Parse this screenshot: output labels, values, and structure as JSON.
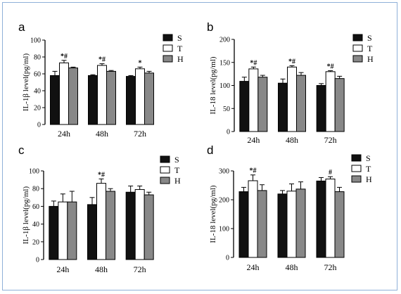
{
  "chart_data": [
    {
      "type": "bar",
      "panel_label": "a",
      "ylabel": "IL-1β level(pg/ml)",
      "ylim": [
        0,
        100
      ],
      "yticks": [
        0,
        20,
        40,
        60,
        80,
        100
      ],
      "categories": [
        "24h",
        "48h",
        "72h"
      ],
      "series": [
        {
          "name": "S",
          "color": "#111111",
          "values": [
            58,
            58,
            57
          ],
          "errors": [
            5,
            1,
            1
          ]
        },
        {
          "name": "T",
          "color": "#ffffff",
          "values": [
            73,
            70,
            66
          ],
          "errors": [
            3,
            2,
            2
          ]
        },
        {
          "name": "H",
          "color": "#888888",
          "values": [
            67,
            63,
            61
          ],
          "errors": [
            1,
            1,
            2
          ]
        }
      ],
      "annotations": [
        {
          "category": 0,
          "series": 1,
          "text": "*#"
        },
        {
          "category": 1,
          "series": 1,
          "text": "*#"
        },
        {
          "category": 2,
          "series": 1,
          "text": "*"
        }
      ],
      "legend_position": "right"
    },
    {
      "type": "bar",
      "panel_label": "b",
      "ylabel": "IL-18 level(pg/ml)",
      "ylim": [
        0,
        200
      ],
      "yticks": [
        0,
        50,
        100,
        150,
        200
      ],
      "categories": [
        "24h",
        "48h",
        "72h"
      ],
      "series": [
        {
          "name": "S",
          "color": "#111111",
          "values": [
            109,
            105,
            100
          ],
          "errors": [
            9,
            9,
            4
          ]
        },
        {
          "name": "T",
          "color": "#ffffff",
          "values": [
            136,
            140,
            130
          ],
          "errors": [
            4,
            3,
            2
          ]
        },
        {
          "name": "H",
          "color": "#888888",
          "values": [
            118,
            122,
            115
          ],
          "errors": [
            4,
            6,
            5
          ]
        }
      ],
      "annotations": [
        {
          "category": 0,
          "series": 1,
          "text": "*#"
        },
        {
          "category": 1,
          "series": 1,
          "text": "*#"
        },
        {
          "category": 2,
          "series": 1,
          "text": "*#"
        }
      ],
      "legend_position": "right"
    },
    {
      "type": "bar",
      "panel_label": "c",
      "ylabel": "IL-1β level(pg/ml)",
      "ylim": [
        0,
        100
      ],
      "yticks": [
        0,
        20,
        40,
        60,
        80,
        100
      ],
      "categories": [
        "24h",
        "48h",
        "72h"
      ],
      "series": [
        {
          "name": "S",
          "color": "#111111",
          "values": [
            60,
            62,
            76
          ],
          "errors": [
            6,
            8,
            7
          ]
        },
        {
          "name": "T",
          "color": "#ffffff",
          "values": [
            65,
            86,
            79
          ],
          "errors": [
            9,
            5,
            4
          ]
        },
        {
          "name": "H",
          "color": "#888888",
          "values": [
            65,
            77,
            73
          ],
          "errors": [
            12,
            3,
            3
          ]
        }
      ],
      "annotations": [
        {
          "category": 1,
          "series": 1,
          "text": "*#"
        }
      ],
      "legend_position": "right"
    },
    {
      "type": "bar",
      "panel_label": "d",
      "ylabel": "IL-18 level(pg/ml)",
      "ylim": [
        0,
        300
      ],
      "yticks": [
        0,
        100,
        200,
        300
      ],
      "categories": [
        "24h",
        "48h",
        "72h"
      ],
      "series": [
        {
          "name": "S",
          "color": "#111111",
          "values": [
            228,
            220,
            265
          ],
          "errors": [
            15,
            12,
            12
          ]
        },
        {
          "name": "T",
          "color": "#ffffff",
          "values": [
            266,
            230,
            272
          ],
          "errors": [
            20,
            25,
            8
          ]
        },
        {
          "name": "H",
          "color": "#888888",
          "values": [
            232,
            237,
            228
          ],
          "errors": [
            20,
            25,
            15
          ]
        }
      ],
      "annotations": [
        {
          "category": 0,
          "series": 1,
          "text": "*#"
        },
        {
          "category": 2,
          "series": 1,
          "text": "#"
        }
      ],
      "legend_position": "right"
    }
  ]
}
